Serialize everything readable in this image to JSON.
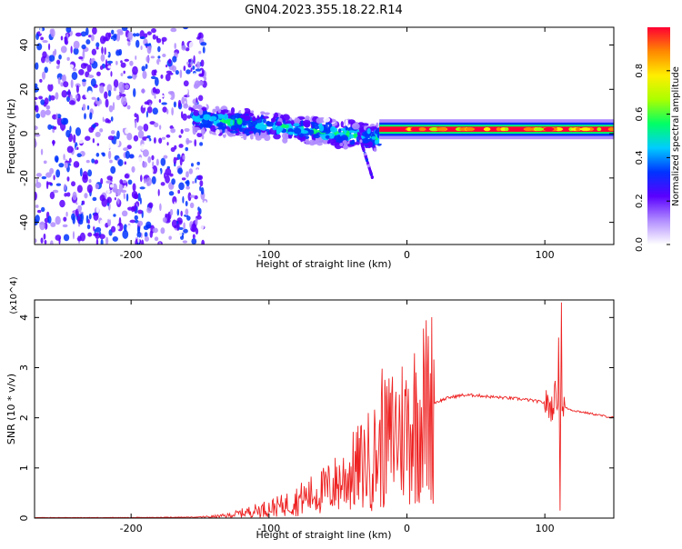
{
  "title": "GN04.2023.355.18.22.R14",
  "chart_data": [
    {
      "type": "heatmap",
      "xlabel": "Height of straight line (km)",
      "ylabel": "Frequency (Hz)",
      "xlim": [
        -270,
        150
      ],
      "ylim": [
        -50,
        48
      ],
      "xticks": [
        -200,
        -100,
        0,
        100
      ],
      "yticks": [
        -40,
        -20,
        0,
        20,
        40
      ],
      "colorbar": {
        "label": "Normalized spectral amplitude",
        "range": [
          0,
          1
        ],
        "ticks": [
          "0.0",
          "0.2",
          "0.4",
          "0.6",
          "0.8"
        ],
        "colormap": [
          "#ffffff",
          "#b08cff",
          "#5a00ff",
          "#0033ff",
          "#00ccff",
          "#00ff66",
          "#aaff00",
          "#ffee00",
          "#ff8800",
          "#ff0033"
        ]
      },
      "regions": [
        {
          "name": "noise",
          "x": [
            -270,
            -150
          ],
          "y": [
            -50,
            48
          ],
          "amplitude": 0.1
        },
        {
          "name": "broad signal",
          "x": [
            -155,
            -20
          ],
          "y_start": 7,
          "y_end": -2,
          "amplitude": 0.45
        },
        {
          "name": "tail",
          "x": [
            -35,
            -25
          ],
          "y": [
            -20,
            0
          ],
          "amplitude": 0.25
        },
        {
          "name": "narrow line",
          "x": [
            -20,
            150
          ],
          "y": 2,
          "amplitude": 0.95
        }
      ]
    },
    {
      "type": "line",
      "xlabel": "Height of straight line (km)",
      "ylabel": "SNR (10 * v/v)",
      "y_multiplier": "(x10^4)",
      "xlim": [
        -270,
        150
      ],
      "ylim": [
        0,
        4.35
      ],
      "xticks": [
        -200,
        -100,
        0,
        100
      ],
      "yticks": [
        0,
        1,
        2,
        3,
        4
      ],
      "color": "#ee2222",
      "series": [
        {
          "x": [
            -270,
            -200,
            -150,
            -140,
            -130,
            -120,
            -110,
            -100,
            -90,
            -80,
            -70,
            -60,
            -50,
            -40,
            -30,
            -20,
            -15,
            -10,
            0,
            10,
            20,
            30,
            40,
            50,
            60,
            70,
            80,
            90,
            100,
            105,
            108,
            110,
            112,
            115,
            120,
            130,
            140,
            150
          ],
          "y": [
            0.01,
            0.01,
            0.02,
            0.03,
            0.05,
            0.1,
            0.15,
            0.2,
            0.25,
            0.35,
            0.45,
            0.55,
            0.7,
            0.9,
            1.1,
            1.3,
            1.5,
            1.7,
            1.8,
            2.1,
            2.3,
            2.4,
            2.45,
            2.45,
            2.42,
            2.4,
            2.38,
            2.35,
            2.3,
            2.2,
            2.5,
            2.3,
            2.3,
            2.2,
            2.15,
            2.1,
            2.05,
            2.0
          ]
        }
      ],
      "spikes": [
        {
          "x": -18,
          "y": 2.98
        },
        {
          "x": -12,
          "y": 2.5
        },
        {
          "x": 110,
          "y": 3.6
        },
        {
          "x": 112,
          "y": 4.3
        },
        {
          "x": 111,
          "y": 0.15
        }
      ]
    }
  ]
}
